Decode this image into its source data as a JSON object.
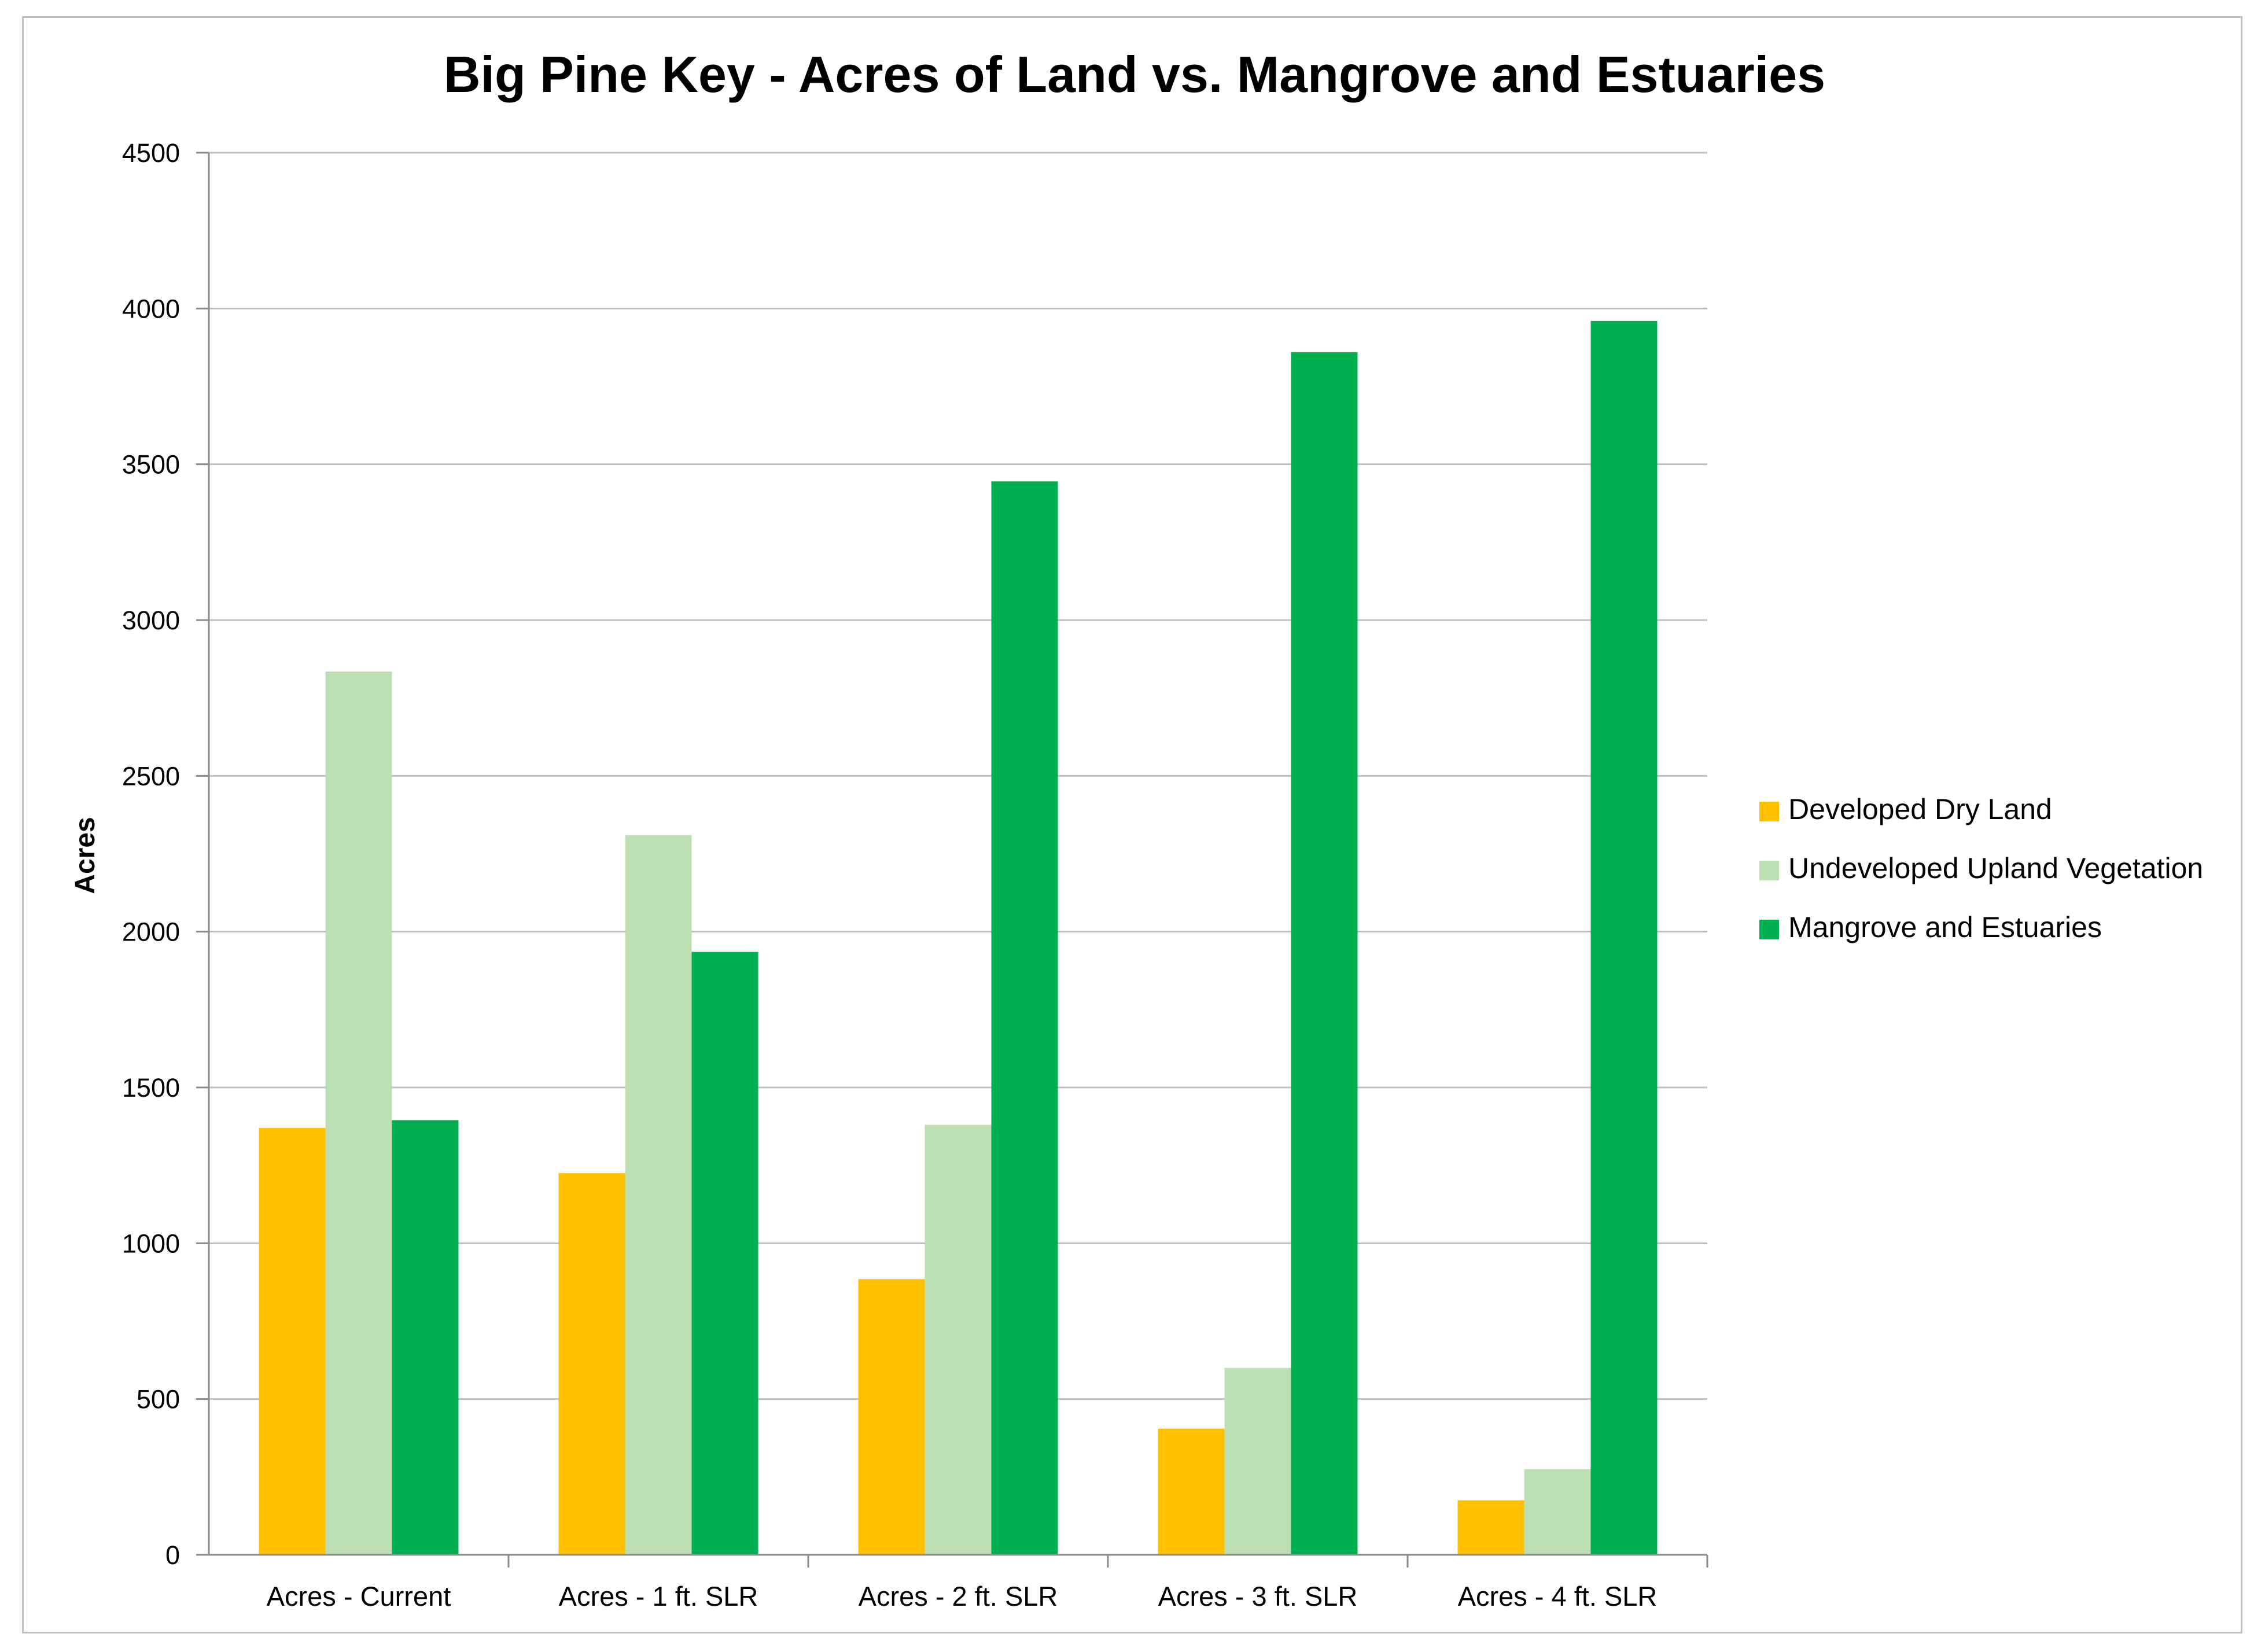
{
  "chart_data": {
    "type": "bar",
    "title": "Big Pine Key - Acres of Land vs. Mangrove and Estuaries",
    "xlabel": "",
    "ylabel": "Acres",
    "ylim": [
      0,
      4500
    ],
    "yticks": [
      0,
      500,
      1000,
      1500,
      2000,
      2500,
      3000,
      3500,
      4000,
      4500
    ],
    "grid": true,
    "legend_position": "right",
    "categories": [
      "Acres - Current",
      "Acres - 1 ft. SLR",
      "Acres - 2 ft. SLR",
      "Acres - 3 ft. SLR",
      "Acres - 4 ft. SLR"
    ],
    "series": [
      {
        "name": "Developed Dry Land",
        "color": "#ffc000",
        "values": [
          1370,
          1225,
          885,
          405,
          175
        ]
      },
      {
        "name": "Undeveloped Upland Vegetation",
        "color": "#bce0b4",
        "values": [
          2835,
          2310,
          1380,
          600,
          275
        ]
      },
      {
        "name": "Mangrove and Estuaries",
        "color": "#00b050",
        "values": [
          1395,
          1935,
          3445,
          3860,
          3960
        ]
      }
    ]
  }
}
